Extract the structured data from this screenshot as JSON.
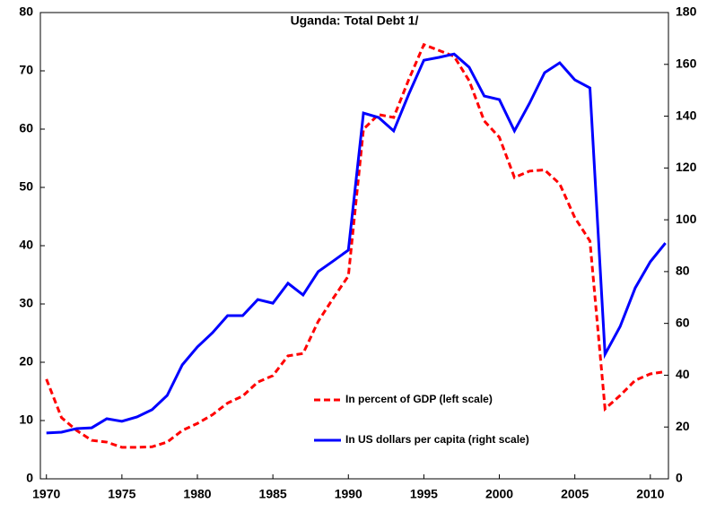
{
  "chart_data": {
    "type": "line",
    "title": "Uganda: Total Debt 1/",
    "x": [
      1970,
      1971,
      1972,
      1973,
      1974,
      1975,
      1976,
      1977,
      1978,
      1979,
      1980,
      1981,
      1982,
      1983,
      1984,
      1985,
      1986,
      1987,
      1988,
      1989,
      1990,
      1991,
      1992,
      1993,
      1994,
      1995,
      1996,
      1997,
      1998,
      1999,
      2000,
      2001,
      2002,
      2003,
      2004,
      2005,
      2006,
      2007,
      2008,
      2009,
      2010,
      2011
    ],
    "xlim": [
      1969.6,
      2011.2
    ],
    "xticks": [
      1970,
      1975,
      1980,
      1985,
      1990,
      1995,
      2000,
      2005,
      2010
    ],
    "ylim": [
      0,
      80
    ],
    "yticks": [
      0,
      10,
      20,
      30,
      40,
      50,
      60,
      70,
      80
    ],
    "y2lim": [
      0,
      180
    ],
    "y2ticks": [
      0,
      20,
      40,
      60,
      80,
      100,
      120,
      140,
      160,
      180
    ],
    "series": [
      {
        "name": "In percent of GDP (left scale)",
        "color": "#ff0000",
        "dashed": true,
        "values": [
          17.1,
          10.5,
          8.3,
          6.6,
          6.3,
          5.4,
          5.4,
          5.5,
          6.3,
          8.3,
          9.5,
          11,
          13,
          14.2,
          16.6,
          17.7,
          21.1,
          21.5,
          27,
          31,
          34.8,
          60,
          62.5,
          62,
          68.5,
          74.5,
          73.5,
          72.5,
          68.3,
          61.4,
          58.6,
          51.7,
          52.8,
          53,
          50.6,
          44.8,
          40.8,
          12,
          14.3,
          16.9,
          18,
          18.4
        ]
      },
      {
        "name": "In US dollars per capita (right scale)",
        "color": "#0000ff",
        "axis": "y2",
        "values": [
          17.7,
          18,
          19.4,
          19.7,
          23.2,
          22.2,
          23.9,
          26.7,
          32.2,
          44,
          50.9,
          56.4,
          63,
          63,
          69.2,
          67.8,
          75.5,
          71,
          80,
          84.1,
          88.3,
          141.2,
          139.5,
          134.3,
          148.5,
          161.6,
          162.7,
          164,
          158.9,
          147.8,
          146.4,
          134.3,
          145,
          156.8,
          160.6,
          154,
          150.9,
          48.1,
          58.8,
          73.7,
          83.8,
          91
        ]
      }
    ]
  }
}
